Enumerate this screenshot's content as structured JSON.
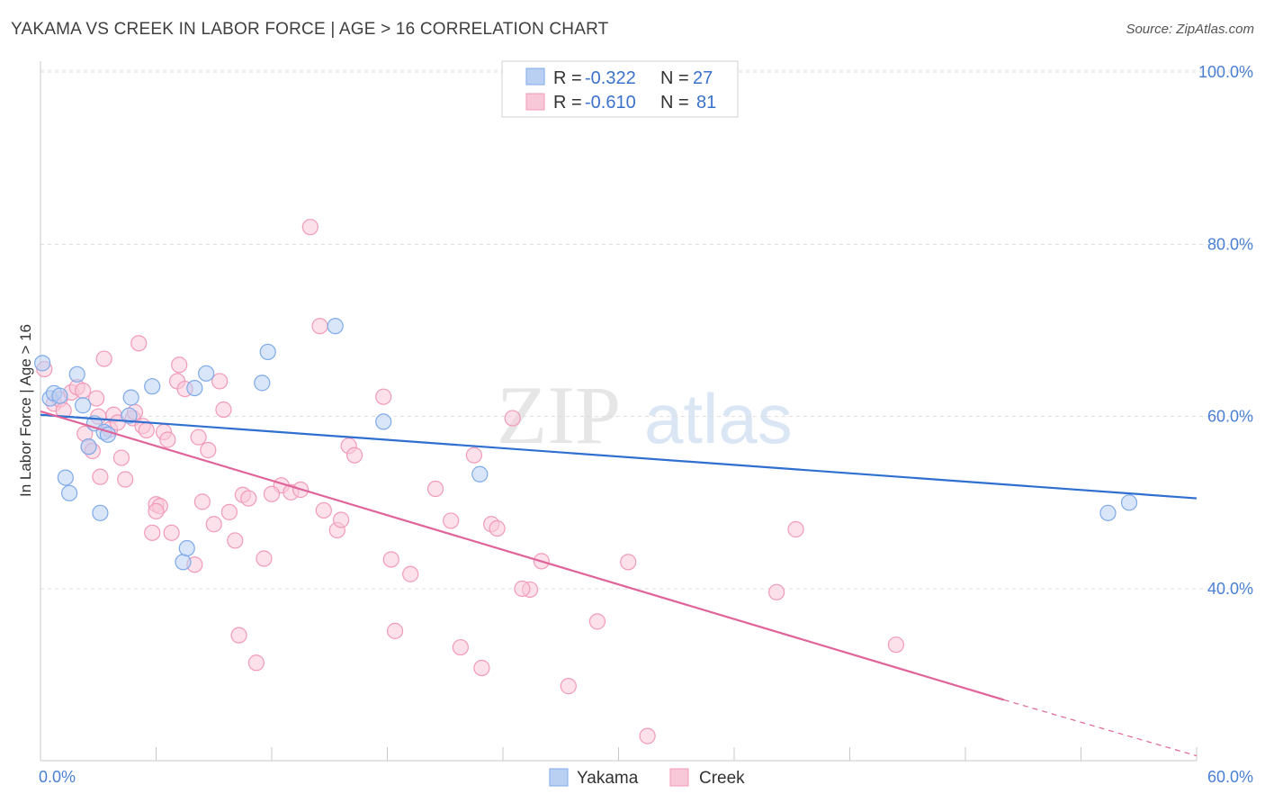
{
  "title": "YAKAMA VS CREEK IN LABOR FORCE | AGE > 16 CORRELATION CHART",
  "source": "Source: ZipAtlas.com",
  "watermark": {
    "zip": "ZIP",
    "atlas": "atlas"
  },
  "chart_data": {
    "type": "scatter",
    "ylabel": "In Labor Force | Age > 16",
    "xlim": [
      0,
      60
    ],
    "ylim": [
      20,
      103
    ],
    "x_tick_labels": [
      "0.0%",
      "60.0%"
    ],
    "y_ticks": [
      {
        "value": 40,
        "label": "40.0%"
      },
      {
        "value": 60,
        "label": "60.0%"
      },
      {
        "value": 80,
        "label": "80.0%"
      },
      {
        "value": 100,
        "label": "100.0%"
      }
    ],
    "legend": [
      {
        "r_label": "R =",
        "r_value": "-0.322",
        "n_label": "N =",
        "n_value": "27"
      },
      {
        "r_label": "R =",
        "r_value": "-0.610",
        "n_label": "N =",
        "n_value": "81"
      }
    ],
    "series": [
      {
        "name": "Yakama",
        "color": "#7eaaea",
        "fill": "#b9d0f3",
        "line_color": "#2f6fd0",
        "trend": {
          "x0": 0,
          "y0": 60.2,
          "x1": 60,
          "y1": 50.5
        },
        "points": [
          [
            0.1,
            66.2
          ],
          [
            0.5,
            62.1
          ],
          [
            0.7,
            62.7
          ],
          [
            1.0,
            62.4
          ],
          [
            1.3,
            52.9
          ],
          [
            1.5,
            51.1
          ],
          [
            1.9,
            64.9
          ],
          [
            2.2,
            61.3
          ],
          [
            2.5,
            56.5
          ],
          [
            2.8,
            59.2
          ],
          [
            3.1,
            48.8
          ],
          [
            3.3,
            58.2
          ],
          [
            3.5,
            57.9
          ],
          [
            4.7,
            62.2
          ],
          [
            5.8,
            63.5
          ],
          [
            7.4,
            43.1
          ],
          [
            7.6,
            44.7
          ],
          [
            8.0,
            63.3
          ],
          [
            8.6,
            65.0
          ],
          [
            11.5,
            63.9
          ],
          [
            11.8,
            67.5
          ],
          [
            15.3,
            70.5
          ],
          [
            17.8,
            59.4
          ],
          [
            22.8,
            53.3
          ],
          [
            55.4,
            48.8
          ],
          [
            56.5,
            50.0
          ],
          [
            4.6,
            60.1
          ]
        ]
      },
      {
        "name": "Creek",
        "color": "#f29ab8",
        "fill": "#f9c8d8",
        "line_color": "#e0649a",
        "trend": {
          "x0": 0,
          "y0": 60.6,
          "x1": 50,
          "y1": 27.1
        },
        "trend_dashed": {
          "x0": 50,
          "y0": 27.1,
          "x1": 60,
          "y1": 20.6
        },
        "points": [
          [
            0.2,
            65.5
          ],
          [
            0.7,
            61.5
          ],
          [
            1.0,
            62.0
          ],
          [
            1.2,
            60.7
          ],
          [
            1.6,
            62.8
          ],
          [
            1.9,
            63.4
          ],
          [
            2.2,
            63.0
          ],
          [
            2.3,
            58.0
          ],
          [
            2.5,
            56.5
          ],
          [
            2.7,
            56.0
          ],
          [
            2.9,
            62.1
          ],
          [
            3.1,
            53.0
          ],
          [
            3.3,
            66.7
          ],
          [
            3.6,
            58.5
          ],
          [
            3.8,
            60.2
          ],
          [
            4.0,
            59.3
          ],
          [
            4.2,
            55.2
          ],
          [
            4.4,
            52.7
          ],
          [
            4.8,
            59.8
          ],
          [
            4.9,
            60.5
          ],
          [
            5.1,
            68.5
          ],
          [
            5.3,
            58.9
          ],
          [
            5.5,
            58.4
          ],
          [
            5.8,
            46.5
          ],
          [
            6.0,
            49.8
          ],
          [
            6.2,
            49.6
          ],
          [
            6.4,
            58.2
          ],
          [
            6.6,
            57.3
          ],
          [
            6.8,
            46.5
          ],
          [
            7.1,
            64.1
          ],
          [
            7.2,
            66.0
          ],
          [
            7.5,
            63.2
          ],
          [
            8.0,
            42.8
          ],
          [
            8.2,
            57.6
          ],
          [
            8.4,
            50.1
          ],
          [
            8.7,
            56.1
          ],
          [
            9.0,
            47.5
          ],
          [
            9.3,
            64.1
          ],
          [
            9.5,
            60.8
          ],
          [
            9.8,
            48.9
          ],
          [
            10.1,
            45.6
          ],
          [
            10.3,
            34.6
          ],
          [
            10.5,
            50.9
          ],
          [
            10.8,
            50.5
          ],
          [
            11.2,
            31.4
          ],
          [
            11.6,
            43.5
          ],
          [
            12.5,
            52.0
          ],
          [
            13.0,
            51.2
          ],
          [
            13.5,
            51.5
          ],
          [
            14.0,
            82.0
          ],
          [
            14.5,
            70.5
          ],
          [
            14.7,
            49.1
          ],
          [
            15.4,
            46.8
          ],
          [
            15.6,
            48.0
          ],
          [
            16.0,
            56.6
          ],
          [
            16.3,
            55.5
          ],
          [
            17.8,
            62.3
          ],
          [
            18.2,
            43.4
          ],
          [
            18.4,
            35.1
          ],
          [
            19.2,
            41.7
          ],
          [
            20.5,
            51.6
          ],
          [
            21.3,
            47.9
          ],
          [
            21.8,
            33.2
          ],
          [
            22.5,
            55.5
          ],
          [
            22.9,
            30.8
          ],
          [
            23.4,
            47.5
          ],
          [
            23.7,
            47.0
          ],
          [
            24.5,
            59.8
          ],
          [
            25.4,
            39.9
          ],
          [
            26.0,
            43.2
          ],
          [
            27.4,
            28.7
          ],
          [
            28.9,
            36.2
          ],
          [
            30.5,
            43.1
          ],
          [
            31.5,
            22.9
          ],
          [
            38.2,
            39.6
          ],
          [
            39.2,
            46.9
          ],
          [
            44.4,
            33.5
          ],
          [
            3.0,
            60.0
          ],
          [
            6.0,
            49.0
          ],
          [
            12.0,
            51.0
          ],
          [
            25.0,
            40.0
          ]
        ]
      }
    ]
  },
  "bottom_legend": [
    {
      "label": "Yakama"
    },
    {
      "label": "Creek"
    }
  ]
}
